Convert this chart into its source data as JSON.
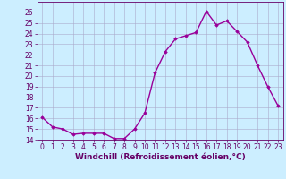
{
  "hours": [
    0,
    1,
    2,
    3,
    4,
    5,
    6,
    7,
    8,
    9,
    10,
    11,
    12,
    13,
    14,
    15,
    16,
    17,
    18,
    19,
    20,
    21,
    22,
    23
  ],
  "values": [
    16.1,
    15.2,
    15.0,
    14.5,
    14.6,
    14.6,
    14.6,
    14.1,
    14.1,
    15.0,
    16.5,
    20.3,
    22.3,
    23.5,
    23.8,
    24.1,
    26.1,
    24.8,
    25.2,
    24.2,
    23.2,
    21.0,
    19.0,
    17.2
  ],
  "line_color": "#990099",
  "marker": "D",
  "marker_size": 1.8,
  "bg_color": "#cceeff",
  "grid_color": "#aaaacc",
  "xlabel": "Windchill (Refroidissement éolien,°C)",
  "ylim": [
    14,
    27
  ],
  "yticks": [
    14,
    15,
    16,
    17,
    18,
    19,
    20,
    21,
    22,
    23,
    24,
    25,
    26
  ],
  "xlim": [
    -0.5,
    23.5
  ],
  "xticks": [
    0,
    1,
    2,
    3,
    4,
    5,
    6,
    7,
    8,
    9,
    10,
    11,
    12,
    13,
    14,
    15,
    16,
    17,
    18,
    19,
    20,
    21,
    22,
    23
  ],
  "xlabel_fontsize": 6.5,
  "tick_fontsize": 5.5,
  "line_width": 1.0,
  "spine_color": "#660066",
  "tick_color": "#660066",
  "text_color": "#660066"
}
